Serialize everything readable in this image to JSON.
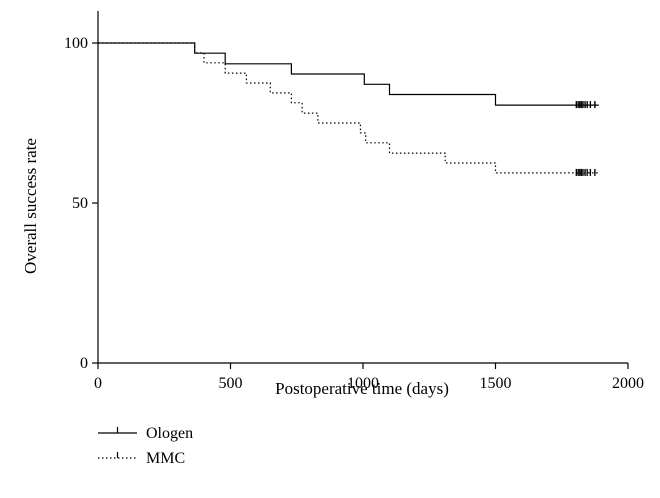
{
  "chart_data": {
    "type": "line",
    "subtype": "kaplan-meier step",
    "title": "",
    "xlabel": "Postoperative time (days)",
    "ylabel": "Overall success rate",
    "xlim": [
      0,
      2000
    ],
    "ylim": [
      0,
      110
    ],
    "xticks": [
      "0",
      "500",
      "1000",
      "1500",
      "2000"
    ],
    "yticks": [
      "0",
      "50",
      "100"
    ],
    "grid": false,
    "legend_placement": "bottom-left",
    "series": [
      {
        "name": "Ologen",
        "style": "solid",
        "color": "#000000",
        "steps": [
          [
            0,
            100
          ],
          [
            365,
            96.8
          ],
          [
            480,
            93.5
          ],
          [
            730,
            90.3
          ],
          [
            1005,
            87.1
          ],
          [
            1100,
            83.9
          ],
          [
            1500,
            80.6
          ],
          [
            1890,
            80.6
          ]
        ],
        "censored": [
          1805,
          1812,
          1818,
          1824,
          1830,
          1838,
          1846,
          1858,
          1875
        ]
      },
      {
        "name": "MMC",
        "style": "dotted",
        "color": "#000000",
        "steps": [
          [
            0,
            100
          ],
          [
            365,
            96.9
          ],
          [
            400,
            93.8
          ],
          [
            480,
            90.6
          ],
          [
            560,
            87.5
          ],
          [
            650,
            84.4
          ],
          [
            730,
            81.3
          ],
          [
            770,
            78.1
          ],
          [
            830,
            75.0
          ],
          [
            990,
            71.9
          ],
          [
            1010,
            68.8
          ],
          [
            1100,
            65.6
          ],
          [
            1310,
            62.5
          ],
          [
            1500,
            59.4
          ],
          [
            1890,
            59.4
          ]
        ],
        "censored": [
          1805,
          1812,
          1818,
          1824,
          1830,
          1838,
          1846,
          1858,
          1875
        ]
      }
    ]
  }
}
